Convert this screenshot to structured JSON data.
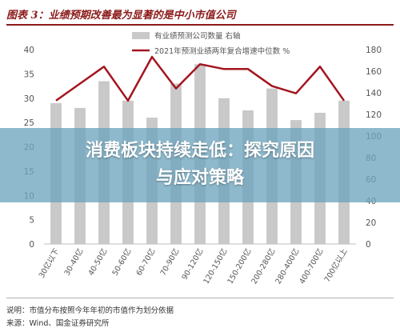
{
  "figure_title": "图表 3：业绩预期改善最为显著的是中小市值公司",
  "notes": {
    "note": "说明：市值分布按照今年年初的市值作为划分依据",
    "source": "来源：Wind、国金证券研究所"
  },
  "banner": {
    "line1": "消费板块持续走低：探究原因",
    "line2": "与应对策略"
  },
  "colors": {
    "bar": "#c9c9c9",
    "line": "#a31620",
    "title": "#8b1a1a",
    "banner": "#6ea5be"
  },
  "chart_data": {
    "type": "bar",
    "categories": [
      "30亿以下",
      "30-40亿",
      "40-50亿",
      "50-60亿",
      "60-70亿",
      "70-90亿",
      "90-120亿",
      "120-150亿",
      "150-200亿",
      "200-280亿",
      "280-400亿",
      "400-700亿",
      "700亿以上"
    ],
    "series": [
      {
        "name": "有业绩预测公司数量 右轴",
        "type": "bar",
        "axis": "right",
        "values": [
          29,
          28,
          33.5,
          29.5,
          26,
          33,
          37,
          30,
          27.5,
          32,
          25.5,
          27,
          29.5
        ]
      },
      {
        "name": "2021年预测业绩两年复合增速中位数 %",
        "type": "line",
        "axis": "left",
        "values": [
          29.5,
          33,
          36.5,
          29.5,
          38.5,
          32,
          37,
          36,
          36,
          32.5,
          31,
          36.5,
          29.5
        ]
      }
    ],
    "left_axis": {
      "ylim": [
        0,
        40
      ],
      "ticks": [
        0,
        5,
        10,
        15,
        20,
        25,
        30,
        35,
        40
      ]
    },
    "right_axis": {
      "ylim": [
        0,
        180
      ],
      "ticks": [
        0,
        20,
        40,
        60,
        80,
        100,
        120,
        140,
        160,
        180
      ]
    },
    "legend_position": "top-center",
    "grid": false
  }
}
